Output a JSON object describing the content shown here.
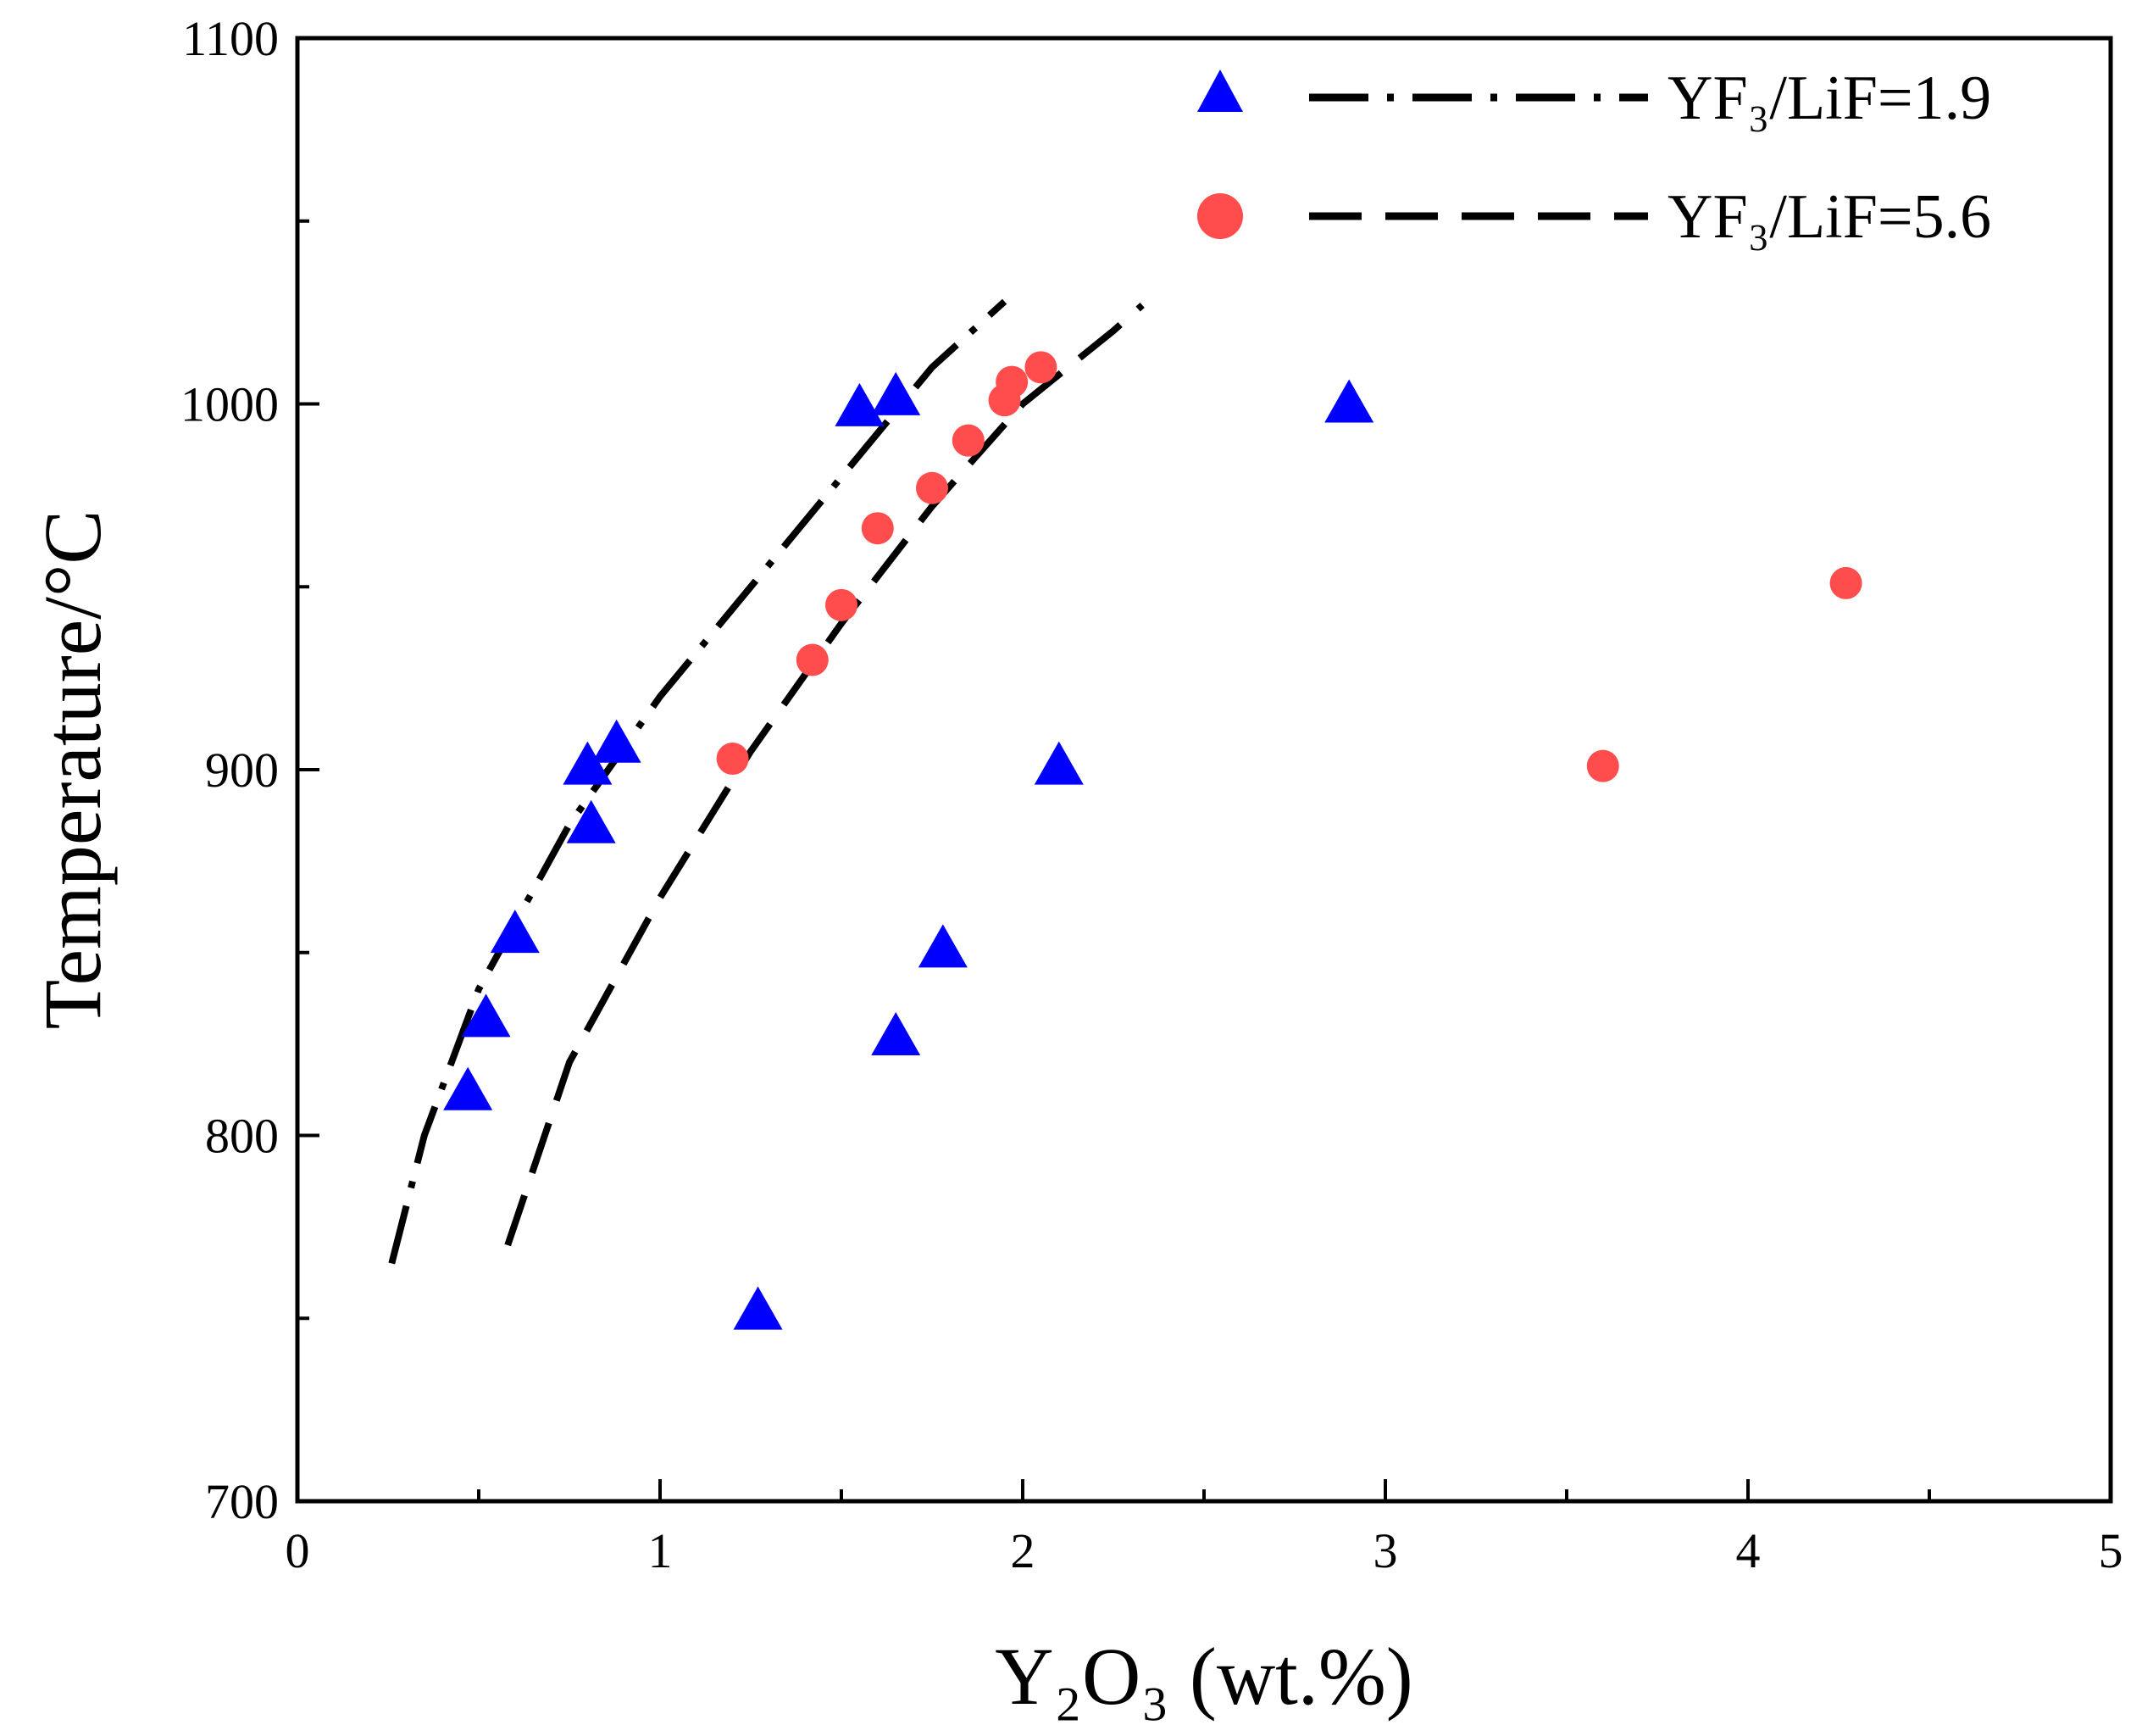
{
  "chart_data": {
    "type": "scatter",
    "title": "",
    "xlabel": "Y₂O₃ (wt.%)",
    "ylabel": "Temperature/°C",
    "xlim": [
      0,
      5
    ],
    "ylim": [
      700,
      1100
    ],
    "x_ticks": [
      0,
      1,
      2,
      3,
      4,
      5
    ],
    "y_ticks": [
      700,
      800,
      900,
      1000,
      1100
    ],
    "x_ticks_text": [
      "0",
      "1",
      "2",
      "3",
      "4",
      "5"
    ],
    "y_ticks_text": [
      "700",
      "800",
      "900",
      "1000",
      "1100"
    ],
    "grid": false,
    "legend_position": "top-right",
    "series": [
      {
        "name": "YF₃/LiF=1.9",
        "marker": "triangle",
        "color": "#0000ff",
        "line_style": "dash-dot",
        "points": [
          [
            0.47,
            812
          ],
          [
            0.52,
            832
          ],
          [
            0.6,
            855
          ],
          [
            0.8,
            901
          ],
          [
            0.81,
            885
          ],
          [
            0.88,
            907
          ],
          [
            1.27,
            752
          ],
          [
            1.55,
            999
          ],
          [
            1.65,
            1002
          ],
          [
            1.65,
            827
          ],
          [
            1.78,
            851
          ],
          [
            2.1,
            901
          ],
          [
            2.9,
            1000
          ]
        ],
        "fit_curve": [
          [
            0.26,
            765
          ],
          [
            0.35,
            800
          ],
          [
            0.5,
            840
          ],
          [
            0.75,
            885
          ],
          [
            1.0,
            920
          ],
          [
            1.25,
            950
          ],
          [
            1.5,
            980
          ],
          [
            1.75,
            1010
          ],
          [
            1.95,
            1028
          ]
        ]
      },
      {
        "name": "YF₃/LiF=5.6",
        "marker": "circle",
        "color": "#ff4d4d",
        "line_style": "dashed",
        "points": [
          [
            1.2,
            903
          ],
          [
            1.42,
            930
          ],
          [
            1.5,
            945
          ],
          [
            1.6,
            966
          ],
          [
            1.75,
            977
          ],
          [
            1.85,
            990
          ],
          [
            1.95,
            1001
          ],
          [
            1.97,
            1006
          ],
          [
            2.05,
            1010
          ],
          [
            3.6,
            901
          ],
          [
            4.27,
            951
          ]
        ],
        "fit_curve": [
          [
            0.58,
            770
          ],
          [
            0.75,
            820
          ],
          [
            1.0,
            865
          ],
          [
            1.25,
            905
          ],
          [
            1.5,
            940
          ],
          [
            1.75,
            972
          ],
          [
            2.0,
            1000
          ],
          [
            2.25,
            1020
          ],
          [
            2.33,
            1027
          ]
        ]
      }
    ]
  }
}
